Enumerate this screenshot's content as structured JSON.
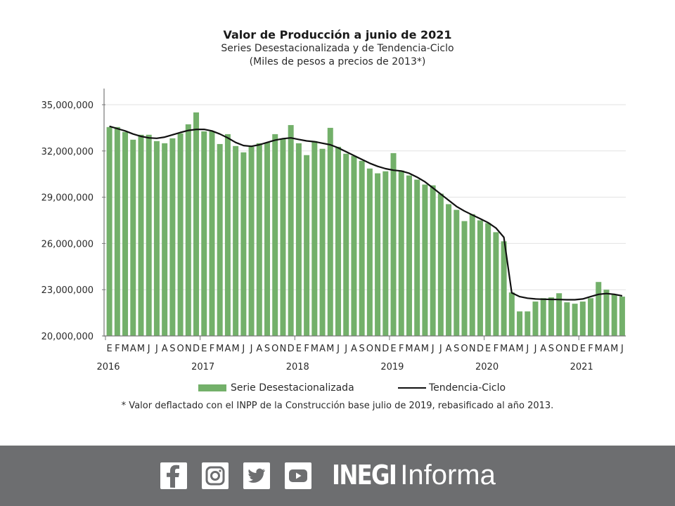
{
  "chart_data": {
    "type": "bar",
    "title": "Valor de Producción a junio de 2021",
    "subtitle": "Series Desestacionalizada y de Tendencia-Ciclo",
    "units_note": "(Miles de pesos a precios de 2013*)",
    "xlabel": "",
    "ylabel": "",
    "ylim": [
      20000000,
      35000000
    ],
    "yticks": [
      20000000,
      23000000,
      26000000,
      29000000,
      32000000,
      35000000
    ],
    "ytick_labels": [
      "20,000,000",
      "23,000,000",
      "26,000,000",
      "29,000,000",
      "32,000,000",
      "35,000,000"
    ],
    "grid": true,
    "month_labels": [
      "E",
      "F",
      "M",
      "A",
      "M",
      "J",
      "J",
      "A",
      "S",
      "O",
      "N",
      "D"
    ],
    "years": [
      "2016",
      "2017",
      "2018",
      "2019",
      "2020",
      "2021"
    ],
    "start": "2016-01",
    "end": "2021-06",
    "series": [
      {
        "name": "Serie Desestacionalizada",
        "type": "bar",
        "color": "#73b06a",
        "values": [
          33550000,
          33550000,
          33230000,
          32730000,
          33050000,
          33050000,
          32640000,
          32500000,
          32820000,
          33140000,
          33730000,
          34500000,
          33270000,
          33270000,
          32450000,
          33090000,
          32320000,
          31910000,
          32270000,
          32500000,
          32550000,
          33090000,
          32770000,
          33680000,
          32500000,
          31730000,
          32640000,
          32140000,
          33500000,
          32270000,
          31820000,
          31680000,
          31360000,
          30860000,
          30550000,
          30680000,
          31860000,
          30730000,
          30410000,
          30140000,
          29820000,
          29770000,
          29230000,
          28550000,
          28180000,
          27450000,
          27900000,
          27500000,
          27320000,
          26730000,
          26140000,
          22820000,
          21590000,
          21590000,
          22230000,
          22450000,
          22500000,
          22770000,
          22180000,
          22090000,
          22230000,
          22450000,
          23500000,
          23000000,
          22680000,
          22550000
        ]
      },
      {
        "name": "Tendencia-Ciclo",
        "type": "line",
        "color": "#111111",
        "values": [
          33600000,
          33450000,
          33300000,
          33100000,
          32950000,
          32850000,
          32820000,
          32900000,
          33050000,
          33200000,
          33330000,
          33400000,
          33400000,
          33300000,
          33100000,
          32850000,
          32550000,
          32350000,
          32300000,
          32400000,
          32550000,
          32700000,
          32800000,
          32850000,
          32750000,
          32650000,
          32600000,
          32500000,
          32400000,
          32200000,
          31950000,
          31700000,
          31450000,
          31200000,
          31000000,
          30850000,
          30750000,
          30700000,
          30550000,
          30300000,
          30000000,
          29600000,
          29200000,
          28800000,
          28400000,
          28100000,
          27850000,
          27600000,
          27350000,
          27000000,
          26400000,
          22800000,
          22550000,
          22450000,
          22400000,
          22380000,
          22370000,
          22360000,
          22350000,
          22350000,
          22400000,
          22550000,
          22700000,
          22750000,
          22700000,
          22600000
        ]
      }
    ],
    "legend": [
      "Serie Desestacionalizada",
      "Tendencia-Ciclo"
    ],
    "legend_position": "bottom",
    "footnote": "* Valor deflactado con el INPP de la Construcción base julio de 2019, rebasificado al año 2013."
  },
  "footer": {
    "social_icons": [
      "facebook-icon",
      "instagram-icon",
      "twitter-icon",
      "youtube-icon"
    ],
    "brand_bold": "INEGI",
    "brand_light": "Informa",
    "background": "#6d6e70"
  }
}
